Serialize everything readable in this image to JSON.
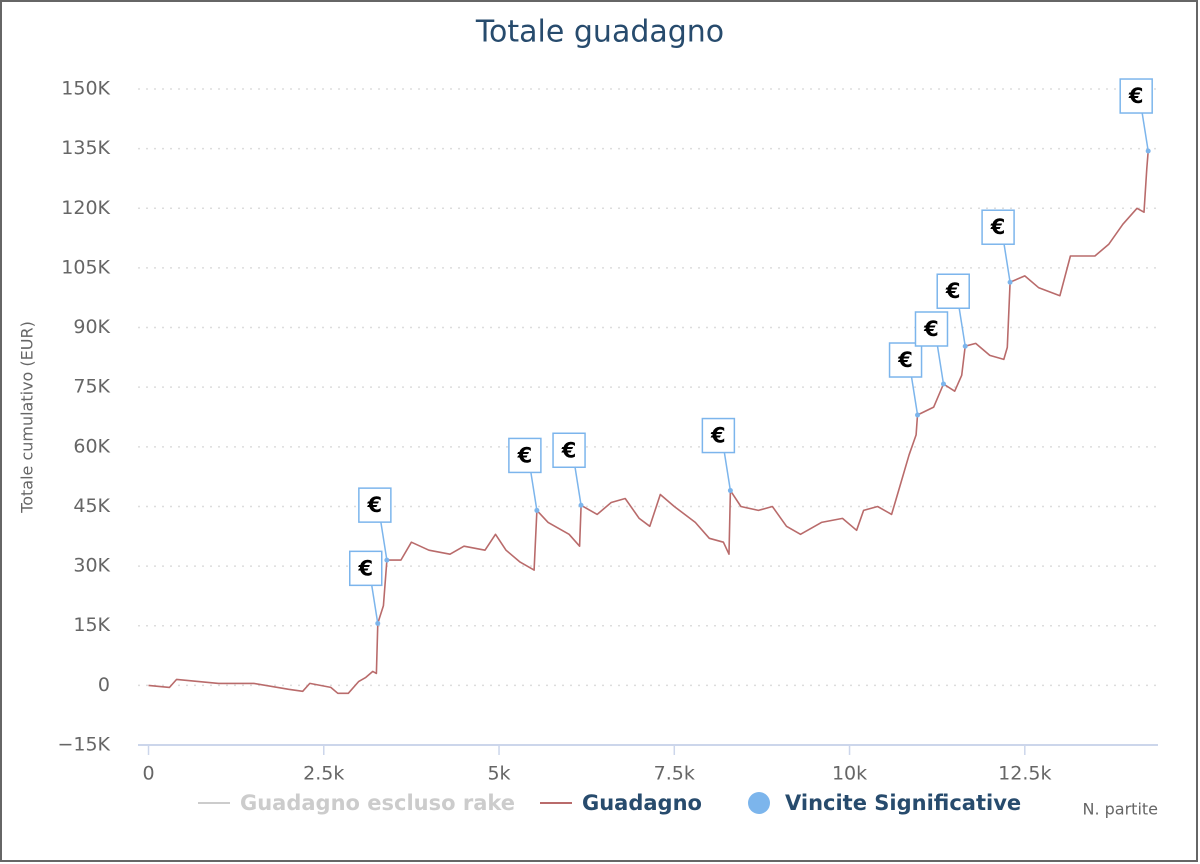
{
  "chart_data": {
    "type": "line",
    "title": "Totale guadagno",
    "y_label": "Totale cumulativo (EUR)",
    "x_label": "N. partite",
    "xlim": [
      -150,
      14400
    ],
    "ylim": [
      -15000,
      150000
    ],
    "xticks": [
      0,
      {
        "value": 2500,
        "label": "2.5k"
      },
      {
        "value": 5000,
        "label": "5k"
      },
      {
        "value": 7500,
        "label": "7.5k"
      },
      {
        "value": 10000,
        "label": "10k"
      },
      {
        "value": 12500,
        "label": "12.5k"
      }
    ],
    "yticks": [
      {
        "value": -15000,
        "label": "−15K"
      },
      0,
      {
        "value": 15000,
        "label": "15K"
      },
      {
        "value": 30000,
        "label": "30K"
      },
      {
        "value": 45000,
        "label": "45K"
      },
      {
        "value": 60000,
        "label": "60K"
      },
      {
        "value": 75000,
        "label": "75K"
      },
      {
        "value": 90000,
        "label": "90K"
      },
      {
        "value": 105000,
        "label": "105K"
      },
      {
        "value": 120000,
        "label": "120K"
      },
      {
        "value": 135000,
        "label": "135K"
      },
      {
        "value": 150000,
        "label": "150K"
      }
    ],
    "grid": true,
    "series": [
      {
        "name": "Guadagno escluso rake",
        "color": "#cccccc",
        "visible": false,
        "x": [],
        "values": []
      },
      {
        "name": "Guadagno",
        "color": "#b96b6b",
        "visible": true,
        "x": [
          0,
          300,
          400,
          1000,
          1500,
          2000,
          2200,
          2300,
          2600,
          2700,
          2850,
          3000,
          3100,
          3200,
          3250,
          3270,
          3350,
          3400,
          3600,
          3750,
          4000,
          4300,
          4500,
          4800,
          4950,
          5100,
          5300,
          5500,
          5540,
          5700,
          6000,
          6150,
          6170,
          6400,
          6600,
          6800,
          7000,
          7150,
          7300,
          7500,
          7800,
          8000,
          8200,
          8280,
          8300,
          8450,
          8700,
          8900,
          9100,
          9300,
          9600,
          9900,
          10100,
          10200,
          10400,
          10600,
          10700,
          10850,
          10950,
          10970,
          11200,
          11340,
          11500,
          11600,
          11650,
          11800,
          12000,
          12200,
          12250,
          12290,
          12500,
          12700,
          13000,
          13150,
          13500,
          13700,
          13900,
          14100,
          14200,
          14240,
          14260
        ],
        "values": [
          0,
          -500,
          1500,
          500,
          500,
          -1000,
          -1500,
          500,
          -500,
          -2000,
          -2000,
          1000,
          2000,
          3500,
          3000,
          15600,
          20000,
          31500,
          31500,
          36000,
          34000,
          33000,
          35000,
          34000,
          38000,
          34000,
          31000,
          29000,
          44000,
          41000,
          38000,
          35000,
          45300,
          43000,
          46000,
          47000,
          42000,
          40000,
          48000,
          45000,
          41000,
          37000,
          36000,
          33000,
          49000,
          45000,
          44000,
          45000,
          40000,
          38000,
          41000,
          42000,
          39000,
          44000,
          45000,
          43000,
          49000,
          58000,
          63000,
          68000,
          70000,
          75800,
          74000,
          78000,
          85300,
          86000,
          83000,
          82000,
          85000,
          101400,
          103000,
          100000,
          98000,
          108000,
          108000,
          111000,
          116000,
          120000,
          119000,
          130000,
          134400
        ]
      },
      {
        "name": "Vincite Significative",
        "color": "#7cb5ec",
        "type": "scatter",
        "flag_label": "€",
        "x": [
          3270,
          3400,
          5540,
          6170,
          8300,
          10970,
          11340,
          11650,
          12290,
          14260
        ],
        "values": [
          15600,
          31500,
          44000,
          45300,
          49000,
          68000,
          75800,
          85300,
          101400,
          134400
        ]
      }
    ]
  }
}
